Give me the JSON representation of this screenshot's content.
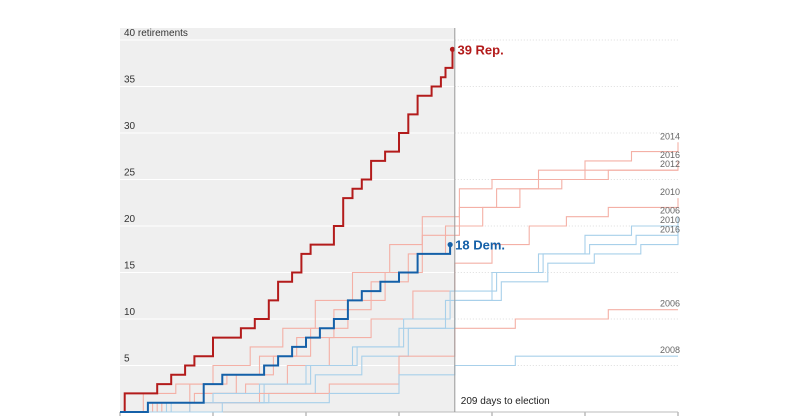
{
  "chart_data": {
    "type": "line",
    "title": "",
    "xlabel": "",
    "ylabel": "",
    "ylim": [
      0,
      40
    ],
    "y_ticks": [
      5,
      10,
      15,
      20,
      25,
      30,
      35,
      40
    ],
    "y_tick_labels": [
      "5",
      "10",
      "15",
      "20",
      "25",
      "30",
      "35",
      "40 retirements"
    ],
    "xlim": [
      0,
      12
    ],
    "current_x": 7.2,
    "annotation": "209 days to election",
    "colors": {
      "republican": "#b31b1b",
      "democrat": "#1460a8",
      "republican_past": "#f4b0a6",
      "democrat_past": "#a8d0ea",
      "shade": "#efefef"
    },
    "highlight_series": [
      {
        "party": "rep",
        "label": "39 Rep.",
        "x": [
          0,
          0.1,
          0.3,
          0.8,
          1.1,
          1.4,
          1.6,
          2.0,
          2.3,
          2.6,
          2.9,
          3.2,
          3.4,
          3.7,
          3.9,
          4.1,
          4.3,
          4.6,
          4.8,
          5.0,
          5.2,
          5.4,
          5.7,
          6.0,
          6.2,
          6.4,
          6.7,
          6.9,
          7.0,
          7.15
        ],
        "y": [
          0,
          2,
          2,
          3,
          4,
          5,
          6,
          8,
          8,
          9,
          10,
          12,
          14,
          15,
          17,
          18,
          18,
          20,
          23,
          24,
          25,
          27,
          28,
          30,
          32,
          34,
          35,
          36,
          37,
          39
        ]
      },
      {
        "party": "dem",
        "label": "18 Dem.",
        "x": [
          0,
          0.4,
          0.6,
          1.0,
          1.5,
          1.8,
          2.2,
          2.6,
          3.1,
          3.4,
          3.7,
          4.0,
          4.3,
          4.6,
          4.9,
          5.2,
          5.6,
          6.0,
          6.4,
          6.9,
          7.1
        ],
        "y": [
          0,
          0,
          1,
          1,
          1,
          3,
          4,
          4,
          5,
          6,
          7,
          8,
          9,
          10,
          12,
          13,
          14,
          15,
          17,
          17,
          18
        ]
      }
    ],
    "past_series": [
      {
        "party": "rep",
        "label": "2014",
        "x": [
          0,
          0.5,
          1.2,
          2.0,
          2.8,
          3.5,
          4.2,
          5.0,
          5.8,
          6.5,
          7.3,
          8.0,
          9.0,
          10.0,
          11.0,
          12.0
        ],
        "y": [
          0,
          2,
          3,
          5,
          7,
          9,
          12,
          15,
          18,
          21,
          24,
          25,
          26,
          27,
          28,
          29
        ]
      },
      {
        "party": "rep",
        "label": "2016",
        "x": [
          0,
          0.7,
          1.5,
          2.3,
          3.0,
          3.8,
          4.6,
          5.4,
          6.2,
          7.0,
          7.8,
          8.6,
          9.5,
          10.5,
          12.0
        ],
        "y": [
          0,
          1,
          3,
          4,
          6,
          8,
          11,
          14,
          17,
          20,
          22,
          24,
          25,
          26,
          27
        ]
      },
      {
        "party": "rep",
        "label": "2012",
        "x": [
          0,
          0.8,
          1.6,
          2.5,
          3.3,
          4.1,
          4.9,
          5.7,
          6.5,
          7.3,
          8.1,
          9.0,
          10.0,
          12.0
        ],
        "y": [
          0,
          1,
          2,
          4,
          6,
          9,
          12,
          15,
          19,
          22,
          24,
          25,
          26,
          26
        ]
      },
      {
        "party": "rep",
        "label": "2010",
        "x": [
          0,
          0.9,
          1.8,
          2.7,
          3.6,
          4.5,
          5.4,
          6.3,
          7.2,
          8.0,
          8.8,
          9.6,
          10.5,
          12.0
        ],
        "y": [
          0,
          1,
          2,
          3,
          5,
          8,
          10,
          13,
          16,
          18,
          20,
          21,
          22,
          23
        ]
      },
      {
        "party": "dem",
        "label": "2006",
        "x": [
          0,
          1.0,
          2.0,
          3.0,
          4.0,
          5.0,
          6.0,
          7.0,
          8.0,
          9.0,
          10.0,
          11.0,
          12.0
        ],
        "y": [
          0,
          1,
          2,
          3,
          5,
          7,
          9,
          12,
          15,
          17,
          19,
          20,
          21
        ]
      },
      {
        "party": "dem",
        "label": "2010",
        "x": [
          0,
          1.1,
          2.1,
          3.1,
          4.1,
          5.1,
          6.1,
          7.1,
          8.1,
          9.1,
          10.1,
          11.1,
          12.0
        ],
        "y": [
          0,
          1,
          1,
          3,
          5,
          7,
          10,
          13,
          15,
          17,
          18,
          19,
          20
        ]
      },
      {
        "party": "dem",
        "label": "2016",
        "x": [
          0,
          1.2,
          2.2,
          3.2,
          4.2,
          5.2,
          6.2,
          7.2,
          8.2,
          9.2,
          10.2,
          11.2,
          12.0
        ],
        "y": [
          0,
          0,
          1,
          2,
          4,
          6,
          9,
          12,
          14,
          16,
          17,
          18,
          19
        ]
      },
      {
        "party": "rep",
        "label": "2006",
        "x": [
          0,
          1.5,
          3.0,
          4.5,
          6.0,
          7.2,
          8.5,
          9.5,
          10.5,
          12.0
        ],
        "y": [
          0,
          1,
          2,
          3,
          6,
          9,
          10,
          10,
          11,
          11
        ]
      },
      {
        "party": "dem",
        "label": "2008",
        "x": [
          0,
          1.5,
          3.0,
          4.5,
          6.0,
          7.2,
          8.5,
          10.0,
          12.0
        ],
        "y": [
          0,
          1,
          1,
          2,
          4,
          5,
          6,
          6,
          6
        ]
      }
    ]
  }
}
